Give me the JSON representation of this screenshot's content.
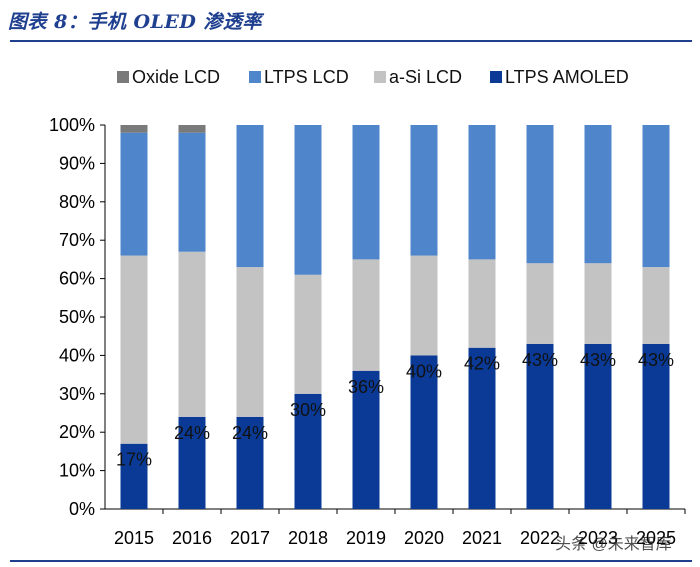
{
  "figure": {
    "title": "图表 8：手机 OLED 渗透率"
  },
  "watermark": "头条 @未来智库",
  "chart_data": {
    "type": "bar",
    "stacked": true,
    "categories": [
      "2015",
      "2016",
      "2017",
      "2018",
      "2019",
      "2020",
      "2021",
      "2022",
      "2023",
      "2025"
    ],
    "series": [
      {
        "name": "LTPS AMOLED",
        "color": "#0a3a96",
        "values": [
          17,
          24,
          24,
          30,
          36,
          40,
          42,
          43,
          43,
          43
        ]
      },
      {
        "name": "a-Si LCD",
        "color": "#c3c3c3",
        "values": [
          49,
          43,
          39,
          31,
          29,
          26,
          23,
          21,
          21,
          20
        ]
      },
      {
        "name": "LTPS LCD",
        "color": "#4f86cb",
        "values": [
          32,
          31,
          37,
          39,
          35,
          34,
          35,
          36,
          36,
          37
        ]
      },
      {
        "name": "Oxide LCD",
        "color": "#7a7a7a",
        "values": [
          2,
          2,
          0,
          0,
          0,
          0,
          0,
          0,
          0,
          0
        ]
      }
    ],
    "data_labels": [
      "17%",
      "24%",
      "24%",
      "30%",
      "36%",
      "40%",
      "42%",
      "43%",
      "43%",
      "43%"
    ],
    "y_ticks": [
      "0%",
      "10%",
      "20%",
      "30%",
      "40%",
      "50%",
      "60%",
      "70%",
      "80%",
      "90%",
      "100%"
    ],
    "ylim": [
      0,
      100
    ],
    "legend_order": [
      "Oxide LCD",
      "LTPS LCD",
      "a-Si LCD",
      "LTPS AMOLED"
    ],
    "legend_position": "top",
    "grid": false
  }
}
